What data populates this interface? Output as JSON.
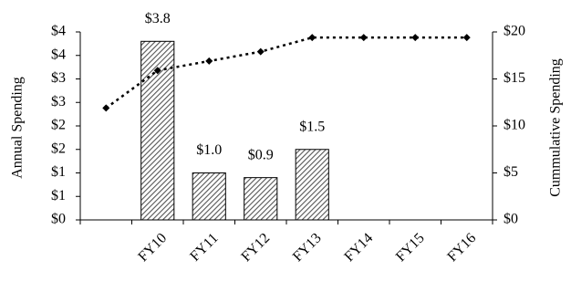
{
  "chart_data": {
    "type": "bar",
    "ylabel": "Annual Spending",
    "y2label": "Cummulative Spending",
    "categories": [
      null,
      "FY10",
      "FY11",
      "FY12",
      "FY13",
      "FY14",
      "FY15",
      "FY16"
    ],
    "series": [
      {
        "type": "bar",
        "color": "#555555",
        "values": [
          null,
          3.8,
          1.0,
          0.9,
          1.5,
          null,
          null,
          null
        ],
        "value_labels": [
          null,
          "$3.8",
          "$1.0",
          "$0.9",
          "$1.5",
          null,
          null,
          null
        ]
      },
      {
        "type": "line",
        "axis": "y2",
        "color": "#000000",
        "values": [
          11.9,
          15.9,
          16.9,
          17.9,
          19.4,
          19.4,
          19.4,
          19.4
        ]
      }
    ],
    "ylim": [
      0,
      4
    ],
    "yticks": [
      {
        "value": 0,
        "label": "$0"
      },
      {
        "value": 0.5,
        "label": "$1"
      },
      {
        "value": 1,
        "label": "$1"
      },
      {
        "value": 1.5,
        "label": "$2"
      },
      {
        "value": 2,
        "label": "$2"
      },
      {
        "value": 2.5,
        "label": "$3"
      },
      {
        "value": 3,
        "label": "$3"
      },
      {
        "value": 3.5,
        "label": "$4"
      },
      {
        "value": 4,
        "label": "$4"
      }
    ],
    "y2lim": [
      0,
      20
    ],
    "y2ticks": [
      {
        "value": 0,
        "label": "$0"
      },
      {
        "value": 5,
        "label": "$5"
      },
      {
        "value": 10,
        "label": "$10"
      },
      {
        "value": 15,
        "label": "$15"
      },
      {
        "value": 20,
        "label": "$20"
      }
    ]
  }
}
